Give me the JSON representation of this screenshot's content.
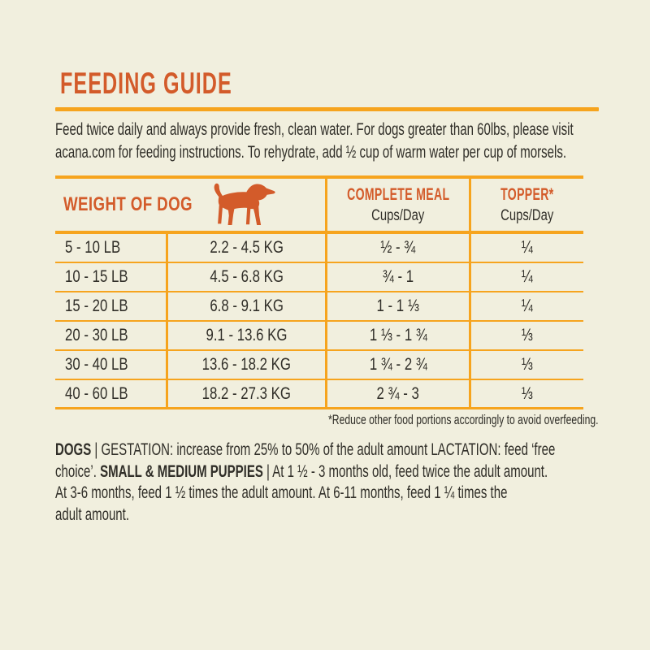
{
  "page": {
    "bg": "#F1EFDE",
    "accent_orange": "#D35B2A",
    "accent_gold": "#F6A41E",
    "text": "#302E28"
  },
  "title": "FEEDING GUIDE",
  "intro": {
    "lines": [
      "Feed twice daily and always provide fresh, clean water. For dogs greater than 60lbs, please visit",
      "acana.com for feeding instructions. To rehydrate, add ½ cup of warm water per cup of morsels."
    ]
  },
  "icons": {
    "dog": "dog-silhouette-icon"
  },
  "table": {
    "header": {
      "weight_label": "WEIGHT OF DOG",
      "meal_label": "COMPLETE MEAL",
      "meal_sub": "Cups/Day",
      "topper_label": "TOPPER*",
      "topper_sub": "Cups/Day"
    },
    "rows": [
      {
        "lb": "5 - 10 LB",
        "kg": "2.2 - 4.5 KG",
        "meal": "½ - ¾",
        "topper": "¼"
      },
      {
        "lb": "10 - 15 LB",
        "kg": "4.5 - 6.8 KG",
        "meal": "¾ - 1",
        "topper": "¼"
      },
      {
        "lb": "15 - 20 LB",
        "kg": "6.8 - 9.1 KG",
        "meal": "1 - 1 ⅓",
        "topper": "¼"
      },
      {
        "lb": "20 - 30 LB",
        "kg": "9.1 - 13.6 KG",
        "meal": "1 ⅓ - 1 ¾",
        "topper": "⅓"
      },
      {
        "lb": "30 - 40 LB",
        "kg": "13.6 - 18.2 KG",
        "meal": "1 ¾ - 2 ¾",
        "topper": "⅓"
      },
      {
        "lb": "40 - 60 LB",
        "kg": "18.2 - 27.3 KG",
        "meal": "2 ¾ - 3",
        "topper": "⅓"
      }
    ]
  },
  "footnote": "*Reduce other food portions accordingly to avoid overfeeding.",
  "care_paragraph": {
    "lines": [
      [
        {
          "text": "DOGS",
          "bold": true
        },
        {
          "text": " | GESTATION: increase from 25% to 50% of the adult amount LACTATION: feed ‘free",
          "bold": false
        }
      ],
      [
        {
          "text": "choice’. ",
          "bold": false
        },
        {
          "text": "SMALL & MEDIUM PUPPIES",
          "bold": true
        },
        {
          "text": " | At 1 ½ - 3 months old, feed twice the adult amount.",
          "bold": false
        }
      ],
      [
        {
          "text": "At 3-6 months, feed 1 ½ times the adult amount. At 6-11 months, feed 1 ¼ times the",
          "bold": false
        }
      ],
      [
        {
          "text": "adult amount.",
          "bold": false
        }
      ]
    ]
  }
}
